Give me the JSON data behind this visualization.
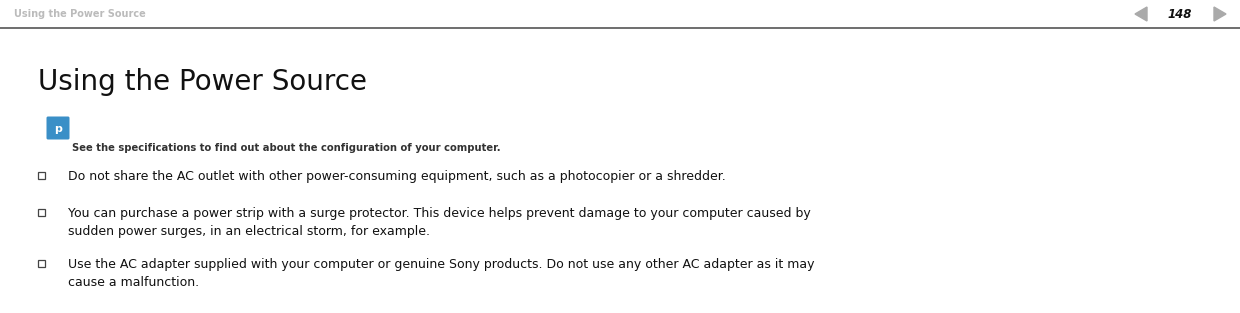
{
  "header_text": "Using the Power Source",
  "header_text_color": "#bbbbbb",
  "header_fontsize": 7.0,
  "page_number": "148",
  "page_number_color": "#111111",
  "page_number_fontsize": 8.5,
  "separator_line_color": "#555555",
  "title": "Using the Power Source",
  "title_fontsize": 20,
  "title_color": "#111111",
  "icon_color": "#3a8fc7",
  "note_text": "See the specifications to find out about the configuration of your computer.",
  "note_fontsize": 7.2,
  "note_color": "#333333",
  "bullet_color": "#444444",
  "body_fontsize": 9.0,
  "body_color": "#111111",
  "bullets": [
    {
      "text": "Do not share the AC outlet with other power-consuming equipment, such as a photocopier or a shredder."
    },
    {
      "text": "You can purchase a power strip with a surge protector. This device helps prevent damage to your computer caused by\nsudden power surges, in an electrical storm, for example."
    },
    {
      "text": "Use the AC adapter supplied with your computer or genuine Sony products. Do not use any other AC adapter as it may\ncause a malfunction."
    }
  ],
  "background_color": "#ffffff",
  "fig_width": 12.4,
  "fig_height": 3.13
}
